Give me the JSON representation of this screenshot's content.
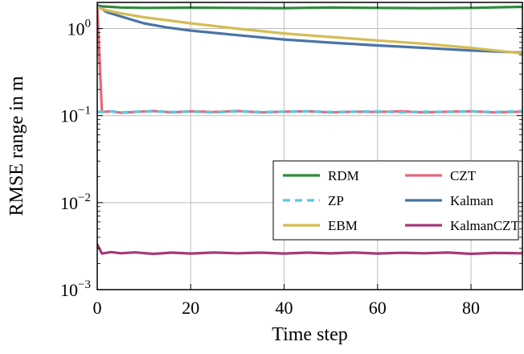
{
  "chart_data": {
    "type": "line",
    "xlabel": "Time step",
    "ylabel": "RMSE range in m",
    "xlim": [
      0,
      91
    ],
    "ylim": [
      0.001,
      2
    ],
    "yscale": "log",
    "grid": true,
    "legend_position": "lower-right",
    "x_ticks": [
      {
        "value": 0,
        "label": "0"
      },
      {
        "value": 20,
        "label": "20"
      },
      {
        "value": 40,
        "label": "40"
      },
      {
        "value": 60,
        "label": "60"
      },
      {
        "value": 80,
        "label": "80"
      }
    ],
    "y_ticks": [
      {
        "value": 1,
        "base": "10",
        "exp": "0"
      },
      {
        "value": 0.1,
        "base": "10",
        "exp": "−1"
      },
      {
        "value": 0.01,
        "base": "10",
        "exp": "−2"
      },
      {
        "value": 0.001,
        "base": "10",
        "exp": "−3"
      }
    ],
    "series": [
      {
        "name": "RDM",
        "color": "#2e8b3a",
        "dash": "solid",
        "x": [
          0,
          1,
          5,
          10,
          20,
          30,
          40,
          50,
          60,
          70,
          80,
          91
        ],
        "y": [
          1.85,
          1.8,
          1.75,
          1.73,
          1.74,
          1.73,
          1.72,
          1.75,
          1.73,
          1.72,
          1.73,
          1.78
        ]
      },
      {
        "name": "CZT",
        "color": "#e8687a",
        "dash": "solid",
        "x": [
          0,
          1,
          3,
          5,
          8,
          12,
          16,
          20,
          25,
          30,
          35,
          40,
          45,
          50,
          55,
          60,
          65,
          70,
          75,
          80,
          85,
          91
        ],
        "y": [
          1.85,
          0.11,
          0.112,
          0.108,
          0.11,
          0.113,
          0.109,
          0.112,
          0.11,
          0.113,
          0.109,
          0.111,
          0.112,
          0.109,
          0.111,
          0.11,
          0.112,
          0.109,
          0.111,
          0.112,
          0.109,
          0.111
        ]
      },
      {
        "name": "ZP",
        "color": "#5bc7e3",
        "dash": "dashed",
        "x": [
          0,
          1,
          3,
          5,
          8,
          12,
          16,
          20,
          25,
          30,
          35,
          40,
          45,
          50,
          55,
          60,
          65,
          70,
          75,
          80,
          85,
          91
        ],
        "y": [
          0.11,
          0.11,
          0.112,
          0.109,
          0.111,
          0.112,
          0.11,
          0.111,
          0.109,
          0.112,
          0.11,
          0.111,
          0.112,
          0.11,
          0.111,
          0.112,
          0.109,
          0.111,
          0.11,
          0.112,
          0.11,
          0.113
        ]
      },
      {
        "name": "Kalman",
        "color": "#4a74a8",
        "dash": "solid",
        "x": [
          0,
          2,
          5,
          10,
          15,
          20,
          30,
          40,
          50,
          60,
          70,
          80,
          91
        ],
        "y": [
          1.85,
          1.55,
          1.38,
          1.15,
          1.03,
          0.95,
          0.84,
          0.75,
          0.69,
          0.64,
          0.6,
          0.56,
          0.53
        ]
      },
      {
        "name": "EBM",
        "color": "#d4bd55",
        "dash": "solid",
        "x": [
          0,
          2,
          5,
          10,
          15,
          20,
          30,
          40,
          50,
          60,
          70,
          80,
          91
        ],
        "y": [
          1.75,
          1.62,
          1.5,
          1.35,
          1.25,
          1.15,
          1.0,
          0.88,
          0.8,
          0.73,
          0.67,
          0.6,
          0.52
        ]
      },
      {
        "name": "KalmanCZT",
        "color": "#a63a78",
        "dash": "solid",
        "x": [
          0,
          1,
          3,
          5,
          8,
          12,
          16,
          20,
          25,
          30,
          35,
          40,
          45,
          50,
          55,
          60,
          65,
          70,
          75,
          80,
          85,
          91
        ],
        "y": [
          0.0033,
          0.0026,
          0.0027,
          0.00262,
          0.00268,
          0.00258,
          0.00266,
          0.0026,
          0.00267,
          0.00262,
          0.00266,
          0.0026,
          0.00266,
          0.00261,
          0.00267,
          0.0026,
          0.00265,
          0.00262,
          0.00267,
          0.00258,
          0.00264,
          0.00262
        ]
      }
    ],
    "legend": [
      {
        "name": "RDM",
        "color": "#2e8b3a",
        "dash": "solid"
      },
      {
        "name": "CZT",
        "color": "#e8687a",
        "dash": "solid"
      },
      {
        "name": "ZP",
        "color": "#5bc7e3",
        "dash": "dashed"
      },
      {
        "name": "Kalman",
        "color": "#4a74a8",
        "dash": "solid"
      },
      {
        "name": "EBM",
        "color": "#d4bd55",
        "dash": "solid"
      },
      {
        "name": "KalmanCZT",
        "color": "#a63a78",
        "dash": "solid"
      }
    ]
  }
}
